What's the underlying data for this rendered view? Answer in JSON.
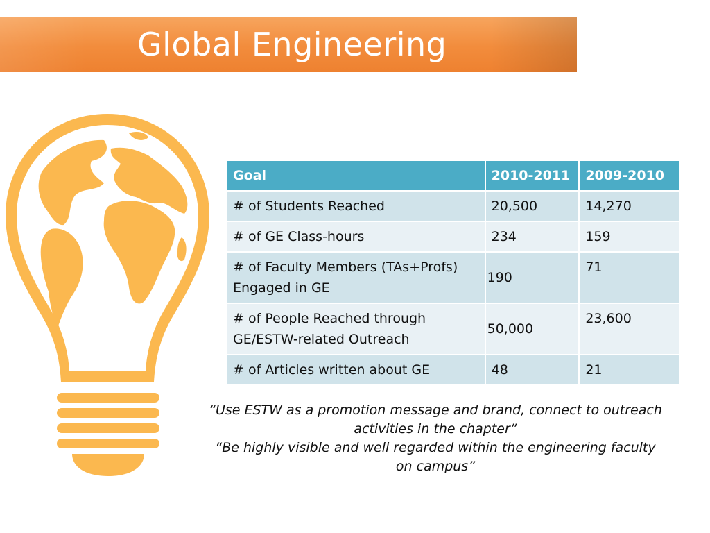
{
  "slide": {
    "title": "Global Engineering",
    "accent_color": "#f28c3c",
    "table_header_color": "#4bacc6",
    "illustration": "lightbulb-globe-icon"
  },
  "table": {
    "headers": [
      "Goal",
      "2010-2011",
      "2009-2010"
    ],
    "rows": [
      {
        "goal": "# of Students Reached",
        "y2010_2011": "20,500",
        "y2009_2010": "14,270"
      },
      {
        "goal": "# of GE Class-hours",
        "y2010_2011": "234",
        "y2009_2010": "159"
      },
      {
        "goal": "# of Faculty Members (TAs+Profs) Engaged in GE",
        "y2010_2011": "190",
        "y2009_2010": "71"
      },
      {
        "goal": "# of People Reached through GE/ESTW-related Outreach",
        "y2010_2011": "50,000",
        "y2009_2010": "23,600"
      },
      {
        "goal": "# of Articles written about GE",
        "y2010_2011": "48",
        "y2009_2010": "21"
      }
    ]
  },
  "quotes": [
    "“Use ESTW as a promotion message and brand, connect to outreach activities in the chapter”",
    "“Be highly visible and well regarded within the engineering faculty on campus”"
  ]
}
